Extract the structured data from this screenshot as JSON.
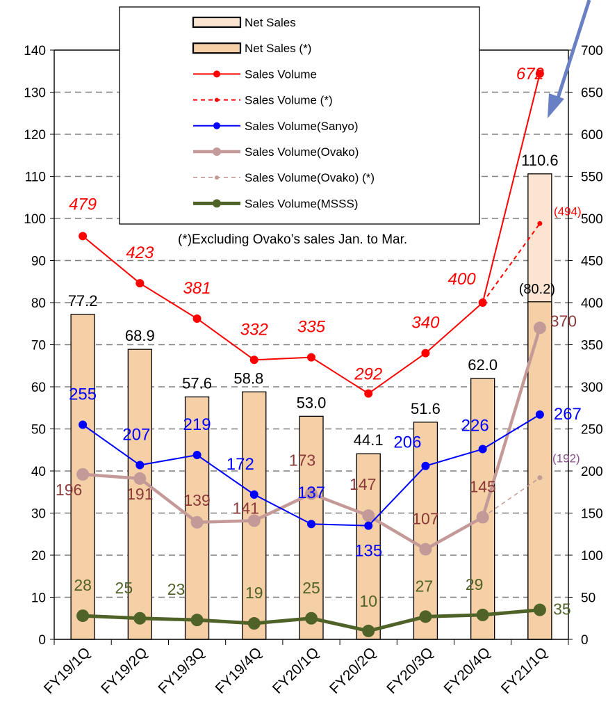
{
  "chart_data": {
    "type": "bar",
    "title": "",
    "xlabel": "",
    "ylabel": "",
    "categories": [
      "FY19/1Q",
      "FY19/2Q",
      "FY19/3Q",
      "FY19/4Q",
      "FY20/1Q",
      "FY20/2Q",
      "FY20/3Q",
      "FY20/4Q",
      "FY21/1Q"
    ],
    "ylim_left": [
      0,
      140
    ],
    "ylim_right": [
      0,
      700
    ],
    "left_ticks": [
      "0",
      "10",
      "20",
      "30",
      "40",
      "50",
      "60",
      "70",
      "80",
      "90",
      "100",
      "110",
      "120",
      "130",
      "140"
    ],
    "right_ticks": [
      "0",
      "50",
      "100",
      "150",
      "200",
      "250",
      "300",
      "350",
      "400",
      "450",
      "500",
      "550",
      "600",
      "650",
      "700"
    ],
    "grid": "dashed horizontal",
    "legend_position": "top-center",
    "footnote": "(*)Excluding Ovako’s sales Jan. to Mar.",
    "legend": [
      {
        "key": "net_sales",
        "label": "Net Sales"
      },
      {
        "key": "net_sales_x",
        "label": "Net Sales (*)"
      },
      {
        "key": "vol",
        "label": "Sales Volume"
      },
      {
        "key": "vol_x",
        "label": "Sales Volume (*)"
      },
      {
        "key": "sanyo",
        "label": "Sales Volume(Sanyo)"
      },
      {
        "key": "ovako",
        "label": "Sales Volume(Ovako)"
      },
      {
        "key": "ovako_x",
        "label": "Sales Volume(Ovako) (*)"
      },
      {
        "key": "msss",
        "label": "Sales Volume(MSSS)"
      }
    ],
    "series": [
      {
        "key": "net_sales",
        "axis": "left",
        "kind": "bar",
        "values": [
          77.2,
          68.9,
          57.6,
          58.8,
          53.0,
          44.1,
          51.6,
          62.0,
          110.6
        ],
        "labels": [
          "77.2",
          "68.9",
          "57.6",
          "58.8",
          "53.0",
          "44.1",
          "51.6",
          "62.0",
          "110.6"
        ]
      },
      {
        "key": "net_sales_x",
        "axis": "left",
        "kind": "bar",
        "values": [
          null,
          null,
          null,
          null,
          null,
          null,
          null,
          null,
          80.2
        ],
        "labels": [
          "",
          "",
          "",
          "",
          "",
          "",
          "",
          "",
          "(80.2)"
        ]
      },
      {
        "key": "vol",
        "axis": "right",
        "kind": "line",
        "values": [
          479,
          423,
          381,
          332,
          335,
          292,
          340,
          400,
          672
        ],
        "labels": [
          "479",
          "423",
          "381",
          "332",
          "335",
          "292",
          "340",
          "400",
          "672"
        ]
      },
      {
        "key": "vol_x",
        "axis": "right",
        "kind": "line",
        "values": [
          null,
          null,
          null,
          null,
          null,
          null,
          null,
          400,
          494
        ],
        "labels": [
          "",
          "",
          "",
          "",
          "",
          "",
          "",
          "",
          "(494)"
        ]
      },
      {
        "key": "sanyo",
        "axis": "right",
        "kind": "line",
        "values": [
          255,
          207,
          219,
          172,
          137,
          135,
          206,
          226,
          267
        ],
        "labels": [
          "255",
          "207",
          "219",
          "172",
          "137",
          "135",
          "206",
          "226",
          "267"
        ]
      },
      {
        "key": "ovako",
        "axis": "right",
        "kind": "line",
        "values": [
          196,
          191,
          139,
          141,
          173,
          147,
          107,
          145,
          370
        ],
        "labels": [
          "196",
          "191",
          "139",
          "141",
          "173",
          "147",
          "107",
          "145",
          "370"
        ]
      },
      {
        "key": "ovako_x",
        "axis": "right",
        "kind": "line",
        "values": [
          null,
          null,
          null,
          null,
          null,
          null,
          null,
          145,
          192
        ],
        "labels": [
          "",
          "",
          "",
          "",
          "",
          "",
          "",
          "",
          "(192)"
        ]
      },
      {
        "key": "msss",
        "axis": "right",
        "kind": "line",
        "values": [
          28,
          25,
          23,
          19,
          25,
          10,
          27,
          29,
          35
        ],
        "labels": [
          "28",
          "25",
          "23",
          "19",
          "25",
          "10",
          "27",
          "29",
          "35"
        ]
      }
    ]
  },
  "colors": {
    "bar_fill": "#f5cfa6",
    "bar_light": "#fbe5d2",
    "vol": "#ff0000",
    "sanyo": "#0000ff",
    "ovako": "#c49a98",
    "ovako_x": "#c49a98",
    "ovako_text": "#8b3a3a",
    "ovako_paren": "#8b4f8b",
    "msss": "#4f6228",
    "arrow": "#6a80c4"
  },
  "icons": {
    "annotation_arrow": "arrow-down-left-icon"
  }
}
